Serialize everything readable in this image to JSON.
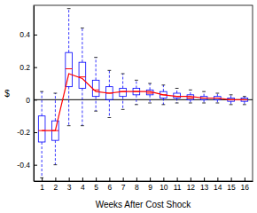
{
  "chart_data": {
    "type": "box",
    "x_label": "Weeks After Cost Shock",
    "y_label": "$",
    "x": [
      1,
      2,
      3,
      4,
      5,
      6,
      7,
      8,
      9,
      10,
      11,
      12,
      13,
      14,
      15,
      16
    ],
    "xlim": [
      0.4,
      16.6
    ],
    "xticks": [
      1,
      2,
      3,
      4,
      5,
      6,
      7,
      8,
      9,
      10,
      11,
      12,
      13,
      14,
      15,
      16
    ],
    "ylim": [
      -0.5,
      0.58
    ],
    "yticks": [
      -0.4,
      -0.2,
      0,
      0.2,
      0.4
    ],
    "hline": 0,
    "series": [
      {
        "type": "box",
        "color": "#0000ff",
        "low": [
          -0.48,
          -0.4,
          -0.16,
          -0.16,
          -0.07,
          -0.11,
          -0.06,
          -0.03,
          -0.02,
          -0.03,
          -0.02,
          -0.02,
          -0.02,
          -0.02,
          -0.03,
          -0.03
        ],
        "q1": [
          -0.26,
          -0.25,
          0.08,
          0.07,
          0.02,
          0.0,
          0.02,
          0.03,
          0.03,
          0.01,
          0.01,
          0.0,
          0.0,
          0.0,
          -0.01,
          -0.01
        ],
        "median": [
          -0.19,
          -0.19,
          0.19,
          0.14,
          0.06,
          0.04,
          0.05,
          0.05,
          0.04,
          0.03,
          0.02,
          0.01,
          0.01,
          0.01,
          0.0,
          0.0
        ],
        "q3": [
          -0.1,
          -0.13,
          0.29,
          0.23,
          0.12,
          0.08,
          0.07,
          0.07,
          0.06,
          0.05,
          0.04,
          0.03,
          0.02,
          0.02,
          0.01,
          0.01
        ],
        "high": [
          0.05,
          0.04,
          0.56,
          0.44,
          0.26,
          0.18,
          0.16,
          0.12,
          0.1,
          0.09,
          0.07,
          0.06,
          0.05,
          0.04,
          0.03,
          0.02
        ]
      },
      {
        "type": "line",
        "color": "#ff0000",
        "values": [
          -0.19,
          -0.19,
          0.16,
          0.13,
          0.05,
          0.04,
          0.05,
          0.05,
          0.05,
          0.03,
          0.02,
          0.02,
          0.01,
          0.01,
          0.0,
          0.0
        ]
      }
    ]
  }
}
